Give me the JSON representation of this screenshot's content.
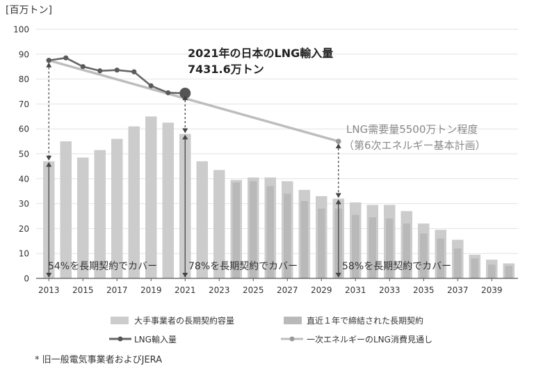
{
  "chart_data": {
    "type": "bar",
    "unit_label": "[百万トン]",
    "x": [
      2013,
      2014,
      2015,
      2016,
      2017,
      2018,
      2019,
      2020,
      2021,
      2022,
      2023,
      2024,
      2025,
      2026,
      2027,
      2028,
      2029,
      2030,
      2031,
      2032,
      2033,
      2034,
      2035,
      2036,
      2037,
      2038,
      2039,
      2040
    ],
    "x_tick_labels": [
      "2013",
      "2015",
      "2017",
      "2019",
      "2021",
      "2023",
      "2025",
      "2027",
      "2029",
      "2031",
      "2033",
      "2035",
      "2037",
      "2039"
    ],
    "ylim": [
      0,
      100
    ],
    "y_ticks": [
      0,
      10,
      20,
      30,
      40,
      50,
      60,
      70,
      80,
      90,
      100
    ],
    "series": [
      {
        "name": "大手事業者の長期契約容量",
        "kind": "bar",
        "color": "#cccccc",
        "values": [
          47,
          55,
          48.5,
          51.5,
          56,
          61,
          65,
          62.5,
          58,
          47,
          43.5,
          39.5,
          40.5,
          40.5,
          39,
          35.5,
          33,
          32,
          30.5,
          29.5,
          29.5,
          27,
          22,
          19.5,
          15.5,
          9.5,
          7.5,
          6
        ]
      },
      {
        "name": "直近１年で締結された長期契約",
        "kind": "bar-inner",
        "color": "#b9b9b9",
        "values": [
          null,
          null,
          null,
          null,
          null,
          null,
          null,
          null,
          null,
          null,
          null,
          38.5,
          39,
          37,
          34,
          31,
          28,
          28,
          25.5,
          24.5,
          24,
          22,
          18,
          16,
          12,
          8,
          5.5,
          5
        ]
      },
      {
        "name": "LNG輸入量",
        "kind": "line",
        "color": "#666666",
        "x": [
          2013,
          2014,
          2015,
          2016,
          2017,
          2018,
          2019,
          2020,
          2021
        ],
        "values": [
          87.5,
          88.5,
          85,
          83.3,
          83.6,
          82.9,
          77.3,
          74.5,
          74.3
        ]
      },
      {
        "name": "一次エネルギーのLNG消費見通し",
        "kind": "line",
        "color": "#bdbdbd",
        "x": [
          2013,
          2030
        ],
        "values": [
          87.5,
          55
        ]
      }
    ],
    "annotations": {
      "import_title_line1": "2021年の日本のLNG輸入量",
      "import_title_line2": "7431.6万トン",
      "demand_line1": "LNG需要量5500万トン程度",
      "demand_line2": "（第6次エネルギー基本計画）",
      "pct_2013": "54%を長期契約でカバー",
      "pct_2021": "78%を長期契約でカバー",
      "pct_2030": "58%を長期契約でカバー"
    },
    "footnote": "*  旧一般電気事業者およびJERA",
    "legend_placement": "bottom"
  }
}
